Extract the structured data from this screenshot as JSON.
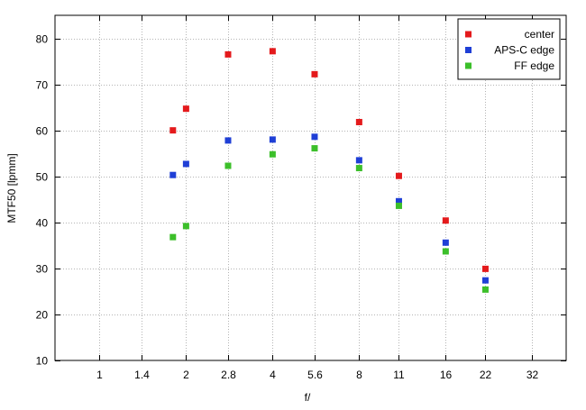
{
  "chart_data": {
    "type": "scatter",
    "title": "",
    "xlabel": "f/",
    "ylabel": "MTF50 [lpmm]",
    "x_scale": "log",
    "x_ticks": [
      "1",
      "1.4",
      "2",
      "2.8",
      "4",
      "5.6",
      "8",
      "11",
      "16",
      "22",
      "32"
    ],
    "x_tick_values": [
      1,
      1.4,
      2,
      2.8,
      4,
      5.6,
      8,
      11,
      16,
      22,
      32
    ],
    "xlim": [
      0.7,
      42
    ],
    "ylim": [
      10,
      85
    ],
    "y_ticks": [
      10,
      20,
      30,
      40,
      50,
      60,
      70,
      80
    ],
    "grid": true,
    "legend_position": "top-right",
    "series": [
      {
        "name": "center",
        "color": "#e41a1c",
        "x": [
          1.8,
          2,
          2.8,
          4,
          5.6,
          8,
          11,
          16,
          22
        ],
        "y": [
          60,
          64.7,
          76.5,
          77.2,
          72.2,
          61.8,
          50.1,
          40.4,
          29.9
        ]
      },
      {
        "name": "APS-C edge",
        "color": "#1f3fd6",
        "x": [
          1.8,
          2,
          2.8,
          4,
          5.6,
          8,
          11,
          16,
          22
        ],
        "y": [
          50.3,
          52.7,
          57.8,
          58,
          58.6,
          53.5,
          44.6,
          35.6,
          27.4
        ]
      },
      {
        "name": "FF edge",
        "color": "#3cbf2a",
        "x": [
          1.8,
          2,
          2.8,
          4,
          5.6,
          8,
          11,
          16,
          22
        ],
        "y": [
          36.8,
          39.2,
          52.3,
          54.8,
          56.1,
          51.8,
          43.6,
          33.7,
          25.4
        ]
      }
    ]
  }
}
